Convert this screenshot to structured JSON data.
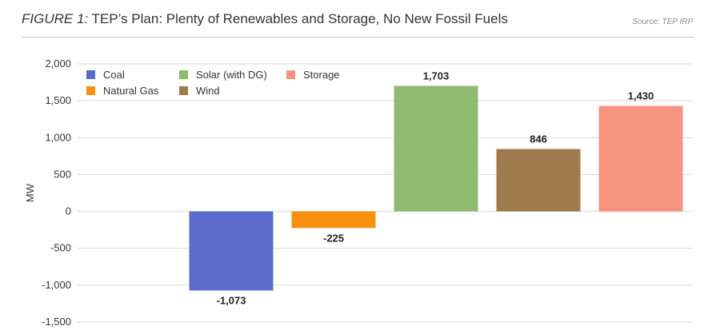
{
  "figure": {
    "label": "FIGURE 1:",
    "title": "TEP’s Plan: Plenty of Renewables and Storage, No New Fossil Fuels",
    "source": "Source: TEP IRP"
  },
  "legend": {
    "items": [
      {
        "name": "Coal",
        "color": "#5b6bcb"
      },
      {
        "name": "Solar (with DG)",
        "color": "#8fba71"
      },
      {
        "name": "Storage",
        "color": "#f79480"
      },
      {
        "name": "Natural Gas",
        "color": "#f7910f"
      },
      {
        "name": "Wind",
        "color": "#9e7a4c"
      }
    ]
  },
  "chart_data": {
    "type": "bar",
    "ylabel": "MW",
    "xlabel": "",
    "ylim": [
      -1500,
      2000
    ],
    "yticks": [
      2000,
      1500,
      1000,
      500,
      0,
      -500,
      -1000,
      -1500
    ],
    "ytick_labels": [
      "2,000",
      "1,500",
      "1,000",
      "500",
      "0",
      "-500",
      "-1,000",
      "-1,500"
    ],
    "grid": true,
    "legend_position": "top-left",
    "categories": [
      "Coal",
      "Natural Gas",
      "Solar (with DG)",
      "Wind",
      "Storage"
    ],
    "values": [
      -1073,
      -225,
      1703,
      846,
      1430
    ],
    "data_labels": [
      "-1,073",
      "-225",
      "1,703",
      "846",
      "1,430"
    ],
    "colors": [
      "#5b6bcb",
      "#f7910f",
      "#8fba71",
      "#9e7a4c",
      "#f79480"
    ]
  }
}
